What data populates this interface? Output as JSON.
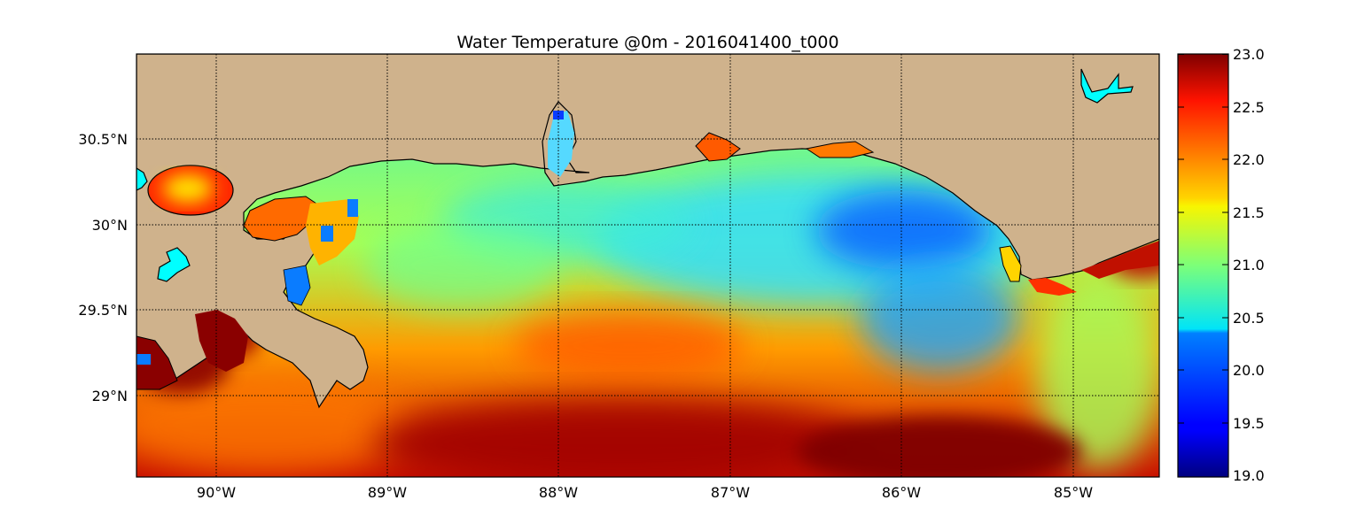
{
  "title": "Water Temperature @0m - 2016041400_t000",
  "map": {
    "lon_range": [
      -90.5,
      -84.5
    ],
    "lat_range": [
      28.55,
      31.0
    ],
    "lon_ticks": [
      {
        "value": -90,
        "label": "90°W"
      },
      {
        "value": -89,
        "label": "89°W"
      },
      {
        "value": -88,
        "label": "88°W"
      },
      {
        "value": -87,
        "label": "87°W"
      },
      {
        "value": -86,
        "label": "86°W"
      },
      {
        "value": -85,
        "label": "85°W"
      }
    ],
    "lat_ticks": [
      {
        "value": 30.5,
        "label": "30.5°N"
      },
      {
        "value": 30.0,
        "label": "30°N"
      },
      {
        "value": 29.5,
        "label": "29.5°N"
      },
      {
        "value": 29.0,
        "label": "29°N"
      }
    ],
    "grid": true,
    "land_color": "#cfb28c",
    "lake_color": "#00ffff",
    "coastline_color": "#000000"
  },
  "colorbar": {
    "min": 19.0,
    "max": 23.0,
    "colormap": "jet",
    "position": "right",
    "ticks": [
      {
        "value": 23.0,
        "label": "23.0"
      },
      {
        "value": 22.5,
        "label": "22.5"
      },
      {
        "value": 22.0,
        "label": "22.0"
      },
      {
        "value": 21.5,
        "label": "21.5"
      },
      {
        "value": 21.0,
        "label": "21.0"
      },
      {
        "value": 20.5,
        "label": "20.5"
      },
      {
        "value": 20.0,
        "label": "20.0"
      },
      {
        "value": 19.5,
        "label": "19.5"
      },
      {
        "value": 19.0,
        "label": "19.0"
      }
    ]
  }
}
